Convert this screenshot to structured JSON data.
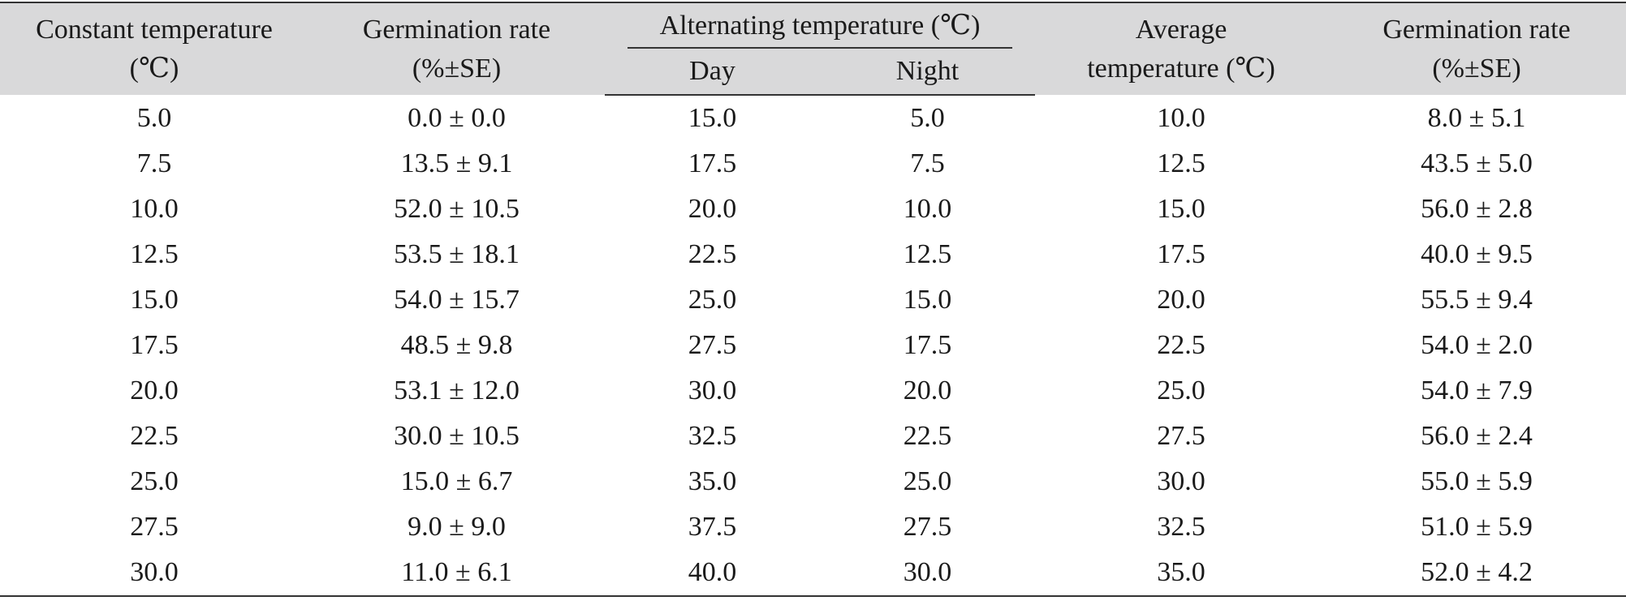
{
  "headers": {
    "constant_temp": [
      "Constant temperature",
      "(℃)"
    ],
    "germ_rate_1": [
      "Germination rate",
      "(%±SE)"
    ],
    "alternating": "Alternating temperature (℃)",
    "day": "Day",
    "night": "Night",
    "average_temp": [
      "Average",
      "temperature (℃)"
    ],
    "germ_rate_2": [
      "Germination rate",
      "(%±SE)"
    ]
  },
  "rows": [
    {
      "constant": "5.0",
      "germ1": "0.0 ± 0.0",
      "day": "15.0",
      "night": "5.0",
      "average": "10.0",
      "germ2": "8.0 ± 5.1"
    },
    {
      "constant": "7.5",
      "germ1": "13.5 ± 9.1",
      "day": "17.5",
      "night": "7.5",
      "average": "12.5",
      "germ2": "43.5 ± 5.0"
    },
    {
      "constant": "10.0",
      "germ1": "52.0 ± 10.5",
      "day": "20.0",
      "night": "10.0",
      "average": "15.0",
      "germ2": "56.0 ± 2.8"
    },
    {
      "constant": "12.5",
      "germ1": "53.5 ± 18.1",
      "day": "22.5",
      "night": "12.5",
      "average": "17.5",
      "germ2": "40.0 ± 9.5"
    },
    {
      "constant": "15.0",
      "germ1": "54.0 ± 15.7",
      "day": "25.0",
      "night": "15.0",
      "average": "20.0",
      "germ2": "55.5 ± 9.4"
    },
    {
      "constant": "17.5",
      "germ1": "48.5 ± 9.8",
      "day": "27.5",
      "night": "17.5",
      "average": "22.5",
      "germ2": "54.0 ± 2.0"
    },
    {
      "constant": "20.0",
      "germ1": "53.1 ± 12.0",
      "day": "30.0",
      "night": "20.0",
      "average": "25.0",
      "germ2": "54.0 ± 7.9"
    },
    {
      "constant": "22.5",
      "germ1": "30.0 ± 10.5",
      "day": "32.5",
      "night": "22.5",
      "average": "27.5",
      "germ2": "56.0 ± 2.4"
    },
    {
      "constant": "25.0",
      "germ1": "15.0 ± 6.7",
      "day": "35.0",
      "night": "25.0",
      "average": "30.0",
      "germ2": "55.0 ± 5.9"
    },
    {
      "constant": "27.5",
      "germ1": "9.0 ± 9.0",
      "day": "37.5",
      "night": "27.5",
      "average": "32.5",
      "germ2": "51.0 ± 5.9"
    },
    {
      "constant": "30.0",
      "germ1": "11.0 ± 6.1",
      "day": "40.0",
      "night": "30.0",
      "average": "35.0",
      "germ2": "52.0 ± 4.2"
    }
  ]
}
